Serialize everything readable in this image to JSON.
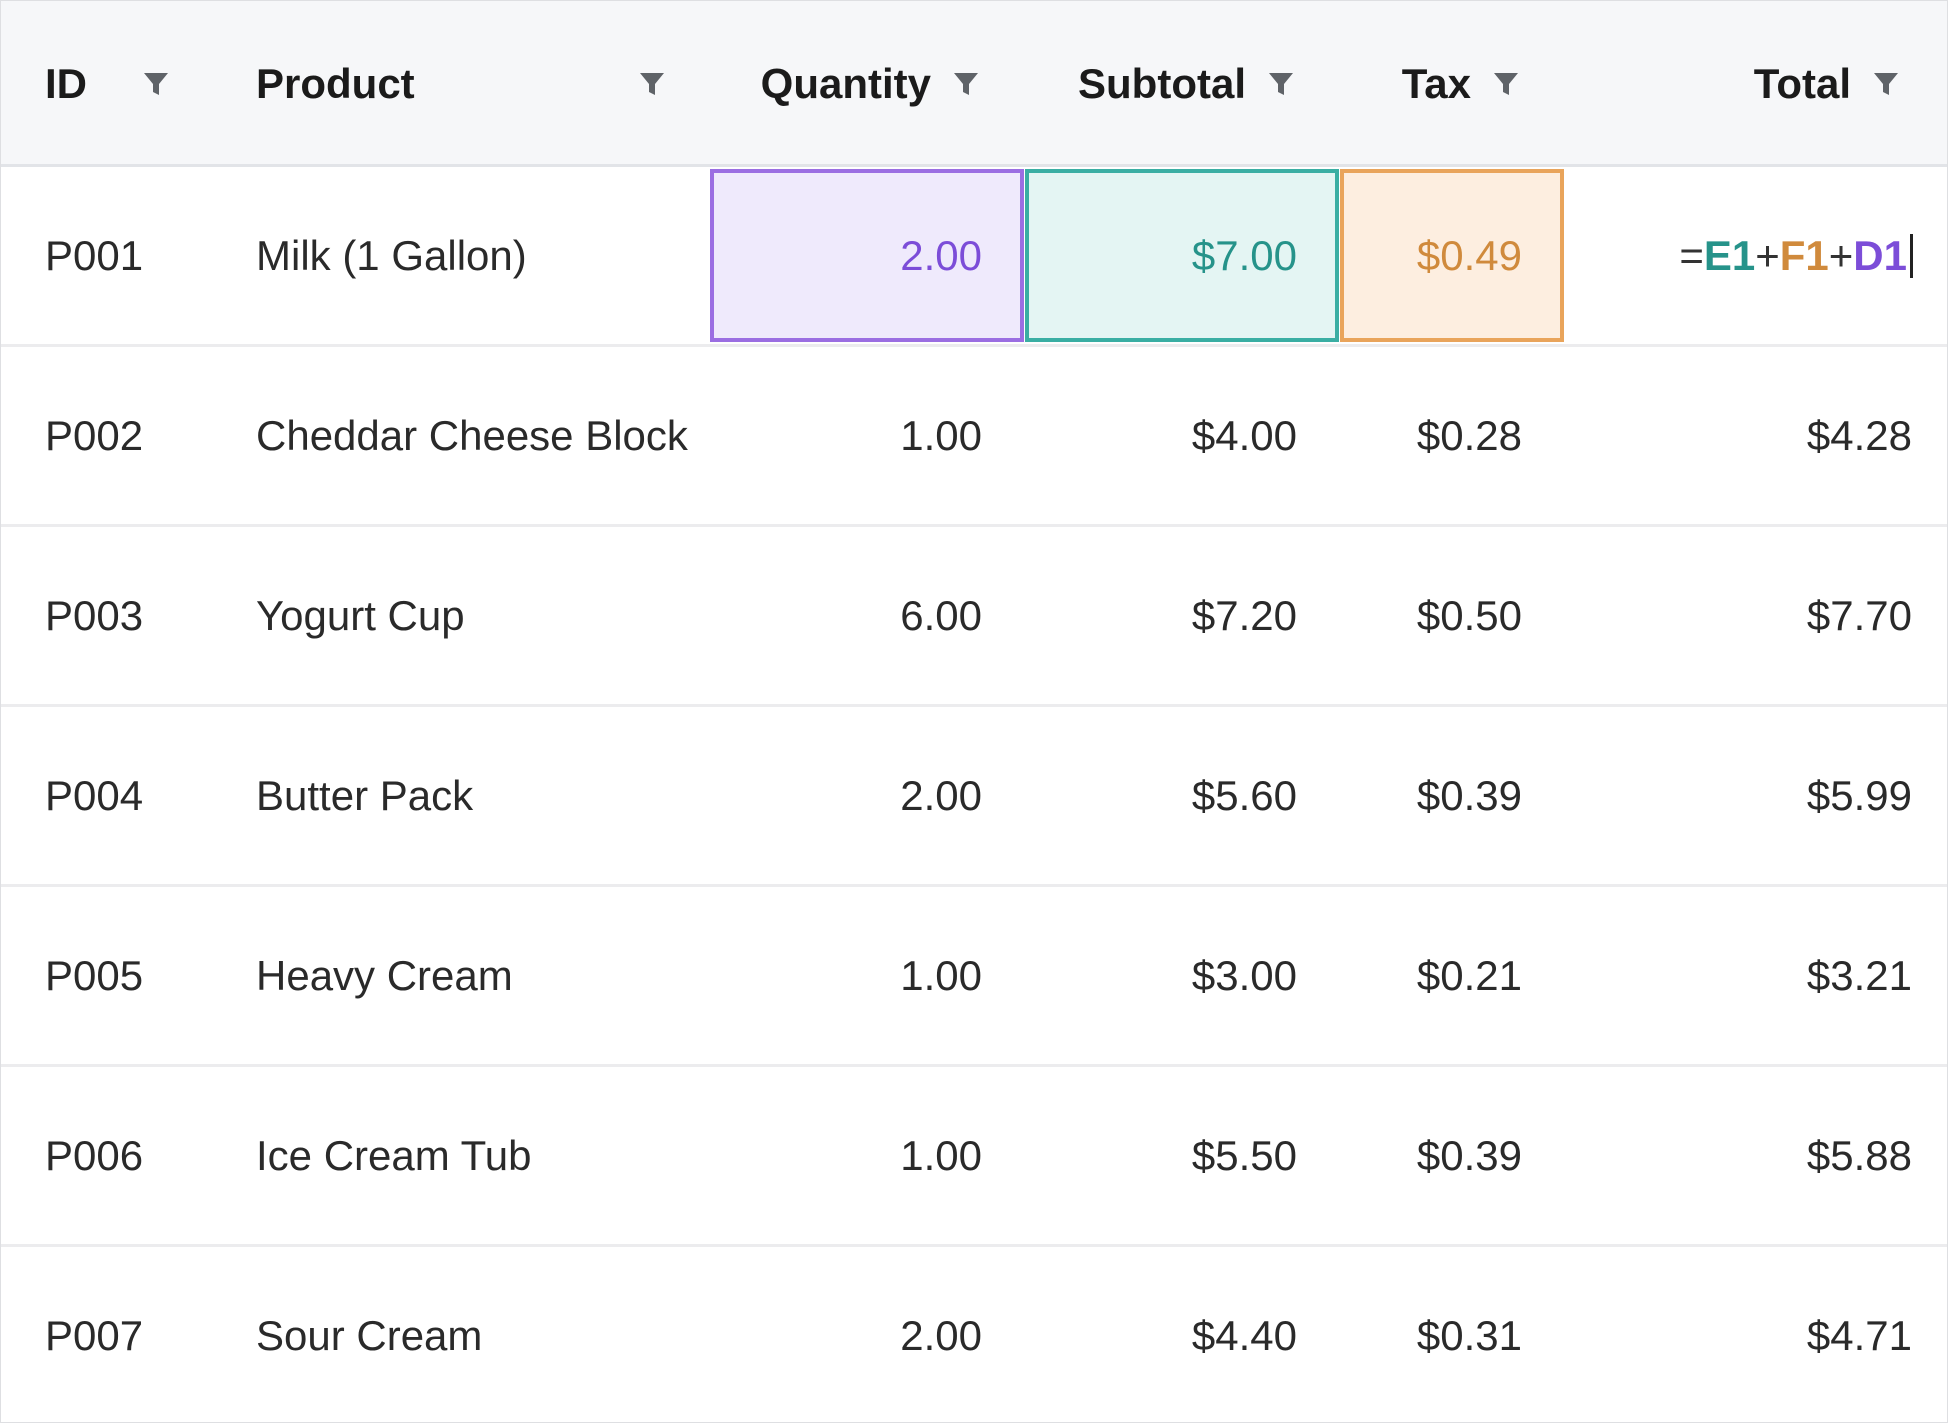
{
  "columns": {
    "id": "ID",
    "product": "Product",
    "quantity": "Quantity",
    "subtotal": "Subtotal",
    "tax": "Tax",
    "total": "Total"
  },
  "filter_icon": "filter-funnel-icon",
  "highlight_colors": {
    "quantity": "#9b6ee2",
    "subtotal": "#3aaea3",
    "tax": "#e9a45b"
  },
  "editing_formula": {
    "eq": "=",
    "ref1": "E1",
    "plus1": "+",
    "ref2": "F1",
    "plus2": "+",
    "ref3": "D1"
  },
  "rows": [
    {
      "id": "P001",
      "product": "Milk (1 Gallon)",
      "quantity": "2.00",
      "subtotal": "$7.00",
      "tax": "$0.49",
      "total": ""
    },
    {
      "id": "P002",
      "product": "Cheddar Cheese Block",
      "quantity": "1.00",
      "subtotal": "$4.00",
      "tax": "$0.28",
      "total": "$4.28"
    },
    {
      "id": "P003",
      "product": "Yogurt Cup",
      "quantity": "6.00",
      "subtotal": "$7.20",
      "tax": "$0.50",
      "total": "$7.70"
    },
    {
      "id": "P004",
      "product": "Butter Pack",
      "quantity": "2.00",
      "subtotal": "$5.60",
      "tax": "$0.39",
      "total": "$5.99"
    },
    {
      "id": "P005",
      "product": "Heavy Cream",
      "quantity": "1.00",
      "subtotal": "$3.00",
      "tax": "$0.21",
      "total": "$3.21"
    },
    {
      "id": "P006",
      "product": "Ice Cream Tub",
      "quantity": "1.00",
      "subtotal": "$5.50",
      "tax": "$0.39",
      "total": "$5.88"
    },
    {
      "id": "P007",
      "product": "Sour Cream",
      "quantity": "2.00",
      "subtotal": "$4.40",
      "tax": "$0.31",
      "total": "$4.71"
    }
  ]
}
